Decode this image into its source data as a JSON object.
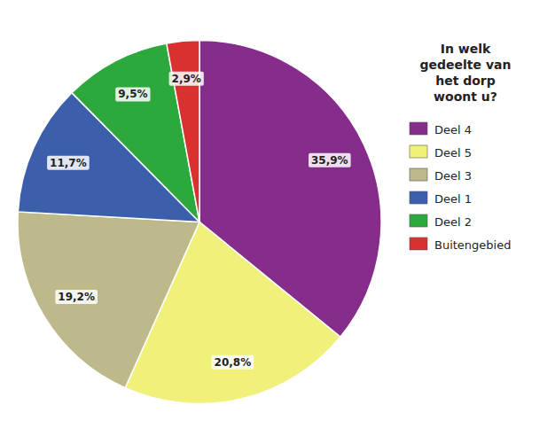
{
  "chart_data": {
    "type": "pie",
    "categories": [
      "Deel 4",
      "Deel 5",
      "Deel 3",
      "Deel 1",
      "Deel 2",
      "Buitengebied"
    ],
    "values": [
      35.9,
      20.8,
      19.2,
      11.7,
      9.5,
      2.9
    ],
    "value_labels": [
      "35,9%",
      "20,8%",
      "19,2%",
      "11,7%",
      "9,5%",
      "2,9%"
    ],
    "colors": [
      "#862d8c",
      "#f0f07a",
      "#bdb98a",
      "#3b5faa",
      "#2ca83c",
      "#d93030"
    ],
    "legend_title": "In welk\ngedeelte van\nhet dorp\nwoont u?",
    "legend": "right",
    "data_labels": true
  }
}
